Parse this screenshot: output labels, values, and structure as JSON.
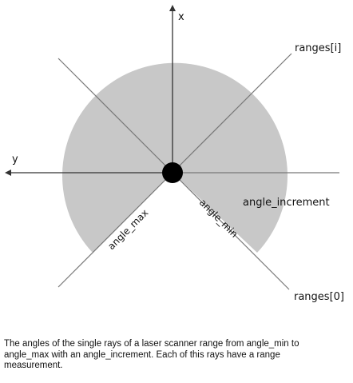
{
  "diagram": {
    "axis_x_label": "x",
    "axis_y_label": "y",
    "ray_label_top": "ranges[i]",
    "ray_label_bottom": "ranges[0]",
    "angle_increment_label": "angle_increment",
    "angle_max_label": "angle_max",
    "angle_min_label": "angle_min",
    "colors": {
      "scan_area": "#c8c8c8",
      "lines": "#777777",
      "axes": "#333333",
      "origin": "#000000"
    }
  },
  "caption": {
    "text": "The angles of the single rays of a laser scanner range from angle_min to angle_max with an angle_increment. Each of this rays have a range measurement."
  }
}
